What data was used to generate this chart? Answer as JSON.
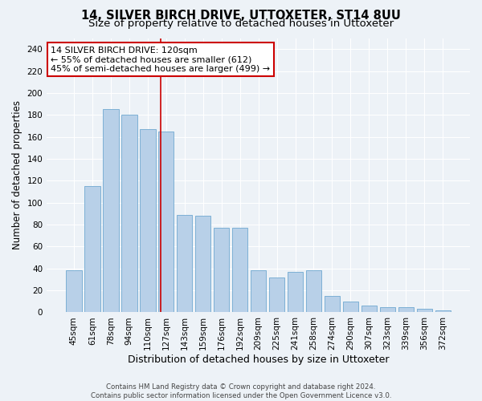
{
  "title": "14, SILVER BIRCH DRIVE, UTTOXETER, ST14 8UU",
  "subtitle": "Size of property relative to detached houses in Uttoxeter",
  "xlabel": "Distribution of detached houses by size in Uttoxeter",
  "ylabel": "Number of detached properties",
  "categories": [
    "45sqm",
    "61sqm",
    "78sqm",
    "94sqm",
    "110sqm",
    "127sqm",
    "143sqm",
    "159sqm",
    "176sqm",
    "192sqm",
    "209sqm",
    "225sqm",
    "241sqm",
    "258sqm",
    "274sqm",
    "290sqm",
    "307sqm",
    "323sqm",
    "339sqm",
    "356sqm",
    "372sqm"
  ],
  "values": [
    38,
    115,
    185,
    180,
    167,
    165,
    89,
    88,
    77,
    77,
    38,
    32,
    37,
    38,
    15,
    10,
    6,
    5,
    5,
    3,
    2
  ],
  "bar_color": "#b8d0e8",
  "bar_edgecolor": "#6fa8d0",
  "vline_x": 4.72,
  "vline_color": "#cc0000",
  "annotation_text": "14 SILVER BIRCH DRIVE: 120sqm\n← 55% of detached houses are smaller (612)\n45% of semi-detached houses are larger (499) →",
  "annotation_box_color": "white",
  "annotation_box_edgecolor": "#cc0000",
  "ylim": [
    0,
    250
  ],
  "yticks": [
    0,
    20,
    40,
    60,
    80,
    100,
    120,
    140,
    160,
    180,
    200,
    220,
    240
  ],
  "footer1": "Contains HM Land Registry data © Crown copyright and database right 2024.",
  "footer2": "Contains public sector information licensed under the Open Government Licence v3.0.",
  "background_color": "#edf2f7",
  "grid_color": "white",
  "title_fontsize": 10.5,
  "subtitle_fontsize": 9.5,
  "tick_fontsize": 7.5,
  "ylabel_fontsize": 8.5,
  "xlabel_fontsize": 9,
  "annotation_fontsize": 8,
  "footer_fontsize": 6.2
}
